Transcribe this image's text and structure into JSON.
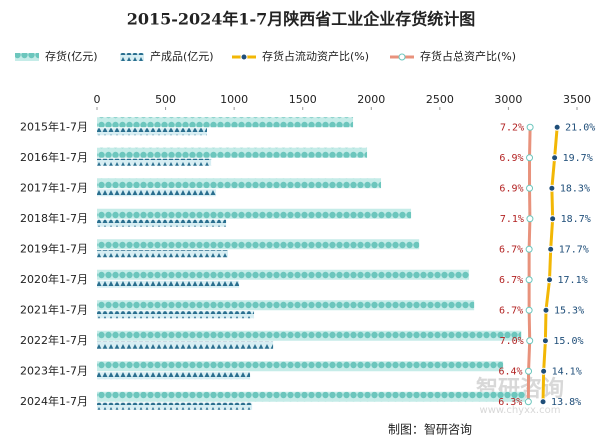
{
  "chart_data": {
    "type": "bar",
    "orientation": "horizontal",
    "title": "2015-2024年1-7月陕西省工业企业存货统计图",
    "categories": [
      "2015年1-7月",
      "2016年1-7月",
      "2017年1-7月",
      "2018年1-7月",
      "2019年1-7月",
      "2020年1-7月",
      "2021年1-7月",
      "2022年1-7月",
      "2023年1-7月",
      "2024年1-7月"
    ],
    "xlim": [
      0,
      3500
    ],
    "xticks": [
      0,
      500,
      1000,
      1500,
      2000,
      2500,
      3000,
      3500
    ],
    "x2lim": [
      0,
      25
    ],
    "series": [
      {
        "name": "存货(亿元)",
        "type": "bar",
        "color": "#7fd0c8",
        "values": [
          1867,
          1969,
          2071,
          2290,
          2349,
          2713,
          2750,
          3093,
          2961,
          3122
        ]
      },
      {
        "name": "产成品(亿元)",
        "type": "bar",
        "color": "#2a6f8f",
        "values": [
          802,
          832,
          868,
          941,
          955,
          1036,
          1145,
          1284,
          1116,
          1131
        ]
      },
      {
        "name": "存货占流动资产比(%)",
        "type": "line",
        "axis": "x2",
        "color": "#f2b705",
        "marker_color": "#1f4e79",
        "label_color": "#1f4e79",
        "values": [
          21.0,
          19.7,
          18.3,
          18.7,
          17.7,
          17.1,
          15.3,
          15.0,
          14.1,
          13.8
        ],
        "value_labels": [
          "21.0%",
          "19.7%",
          "18.3%",
          "18.7%",
          "17.7%",
          "17.1%",
          "15.3%",
          "15.0%",
          "14.1%",
          "13.8%"
        ]
      },
      {
        "name": "存货占总资产比(%)",
        "type": "line",
        "axis": "x2",
        "color": "#e8927c",
        "marker_color": "#ffffff",
        "label_color": "#b22222",
        "values": [
          7.2,
          6.9,
          6.9,
          7.1,
          6.7,
          6.7,
          6.7,
          7.0,
          6.4,
          6.3
        ],
        "value_labels": [
          "7.2%",
          "6.9%",
          "6.9%",
          "7.1%",
          "6.7%",
          "6.7%",
          "6.7%",
          "7.0%",
          "6.4%",
          "6.3%"
        ]
      }
    ],
    "source": "制图：智研咨询",
    "watermark": "智研咨询",
    "watermark_url": "www.chyxx.com"
  }
}
